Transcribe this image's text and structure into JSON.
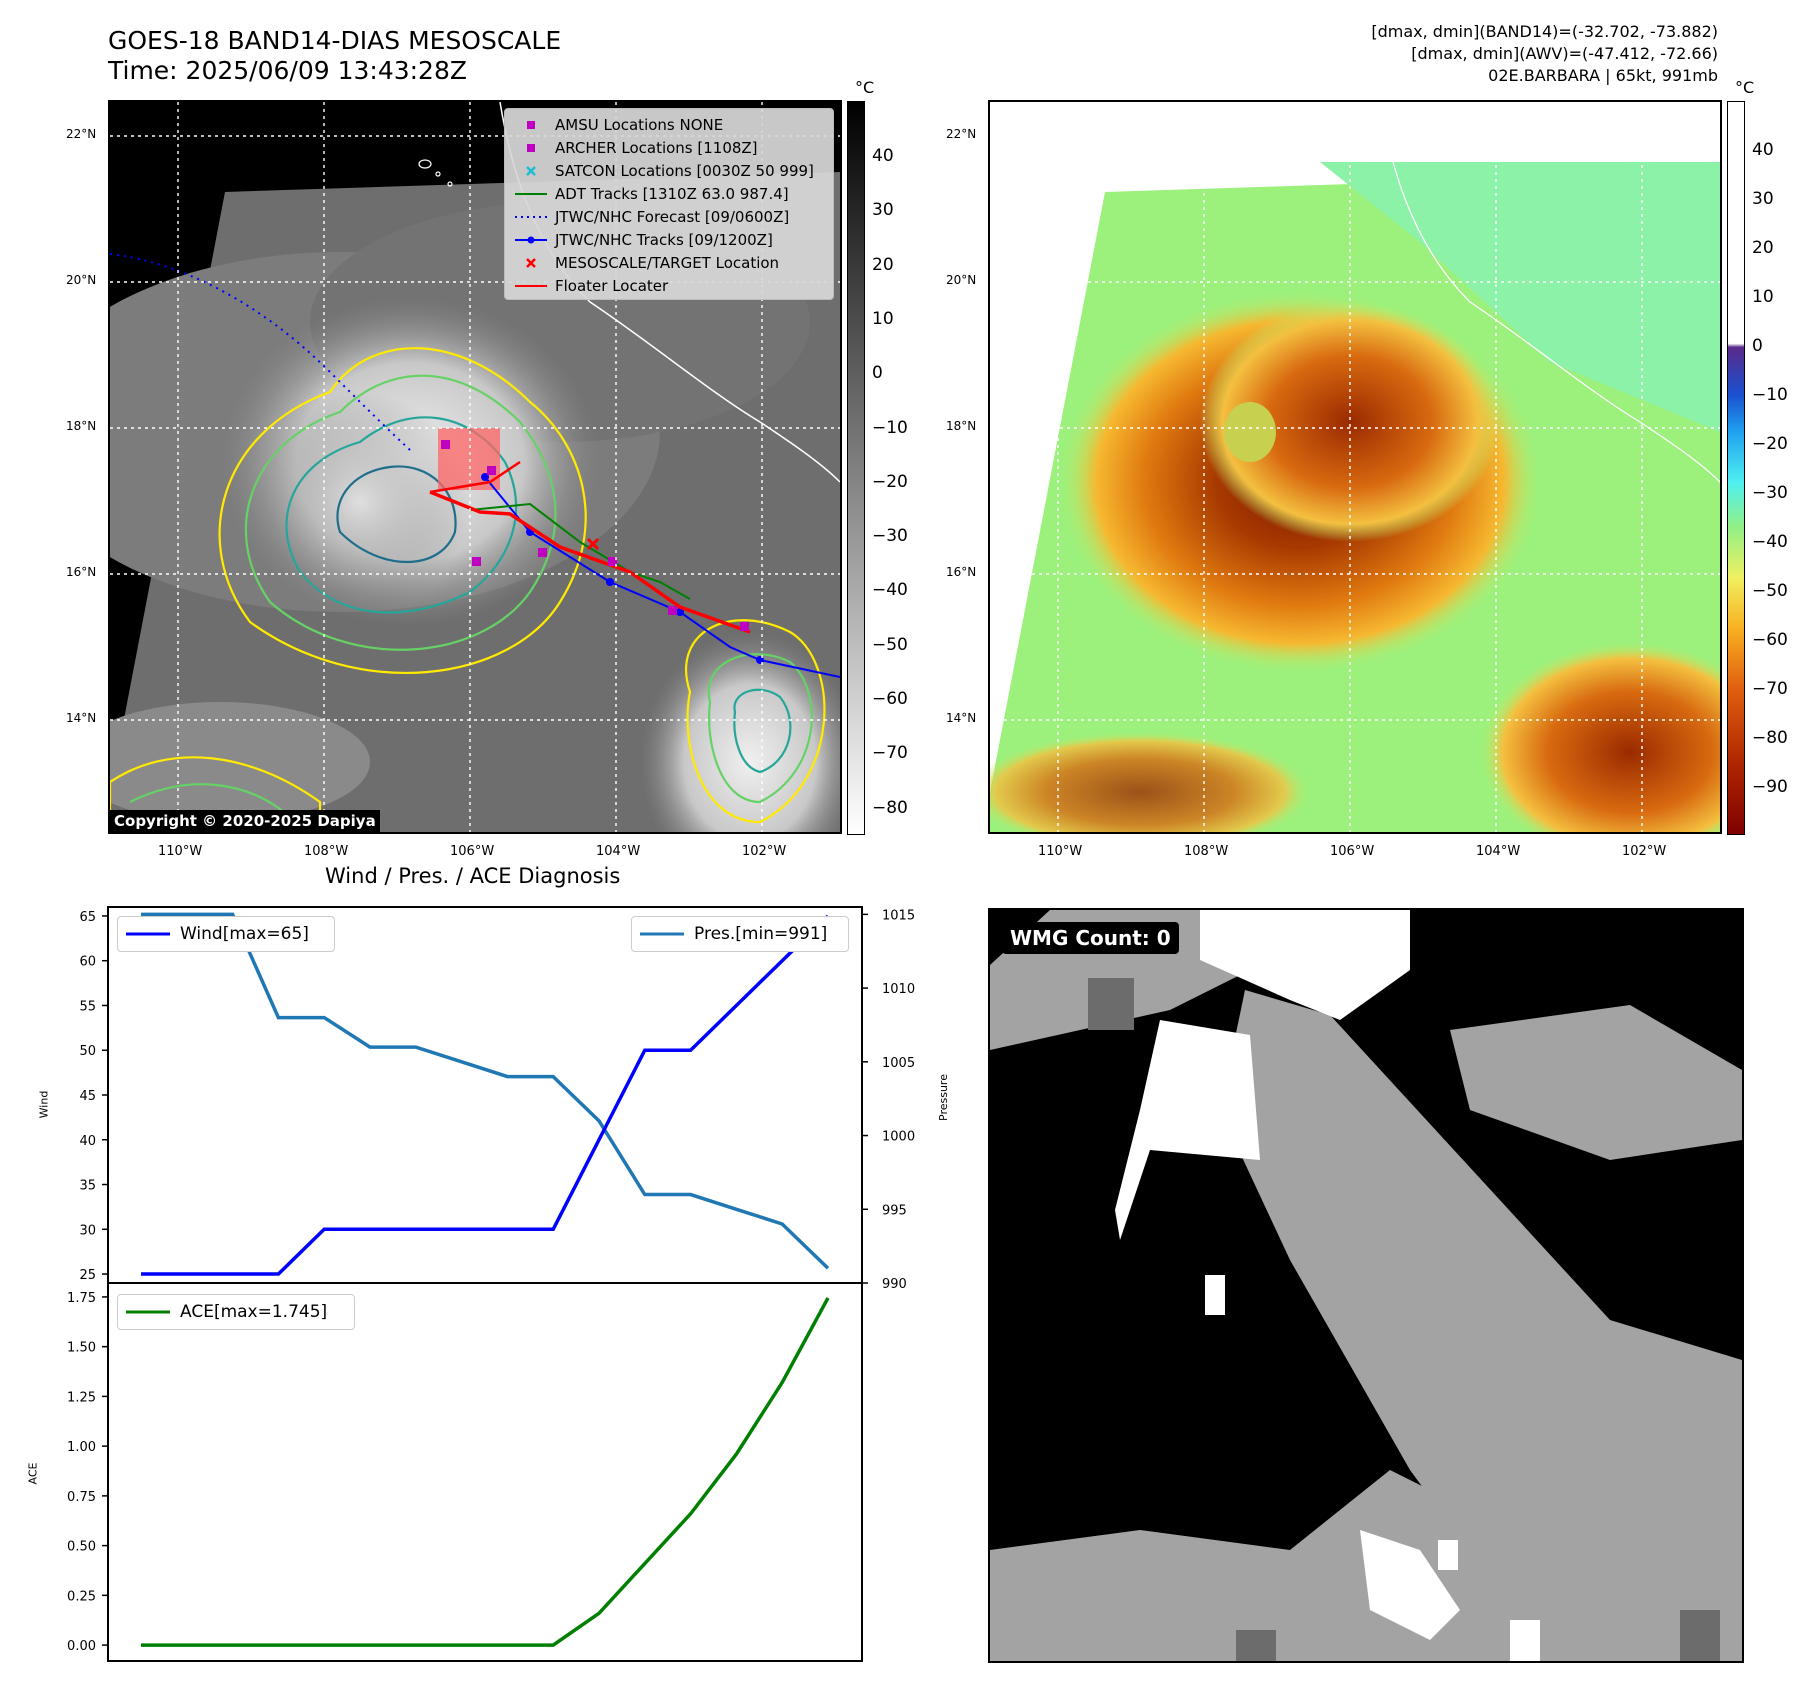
{
  "header": {
    "title": "GOES-18 BAND14-DIAS MESOSCALE",
    "time": "Time: 2025/06/09 13:43:28Z",
    "info_line1": "[dmax, dmin](BAND14)=(-32.702, -73.882)",
    "info_line2": "[dmax, dmin](AWV)=(-47.412, -72.66)",
    "info_line3": "02E.BARBARA | 65kt, 991mb"
  },
  "map": {
    "lat_labels": [
      "22°N",
      "20°N",
      "18°N",
      "16°N",
      "14°N"
    ],
    "lon_labels": [
      "110°W",
      "108°W",
      "106°W",
      "104°W",
      "102°W"
    ],
    "copyright": "Copyright © 2020-2025 Dapiya",
    "legend": [
      {
        "label": "AMSU Locations NONE",
        "color": "#c000c0",
        "marker": "square"
      },
      {
        "label": "ARCHER Locations [1108Z]",
        "color": "#c000c0",
        "marker": "square"
      },
      {
        "label": "SATCON Locations [0030Z 50 999]",
        "color": "#17becf",
        "marker": "x"
      },
      {
        "label": "ADT Tracks [1310Z 63.0 987.4]",
        "color": "#008000",
        "marker": "line"
      },
      {
        "label": "JTWC/NHC Forecast [09/0600Z]",
        "color": "#0000ff",
        "marker": "dotted"
      },
      {
        "label": "JTWC/NHC Tracks [09/1200Z]",
        "color": "#0000ff",
        "marker": "line-dot"
      },
      {
        "label": "MESOSCALE/TARGET Location",
        "color": "#ff0000",
        "marker": "x"
      },
      {
        "label": "Floater Locater",
        "color": "#ff0000",
        "marker": "line"
      }
    ],
    "colorbar_unit": "°C",
    "colorbar_ticks_gray": [
      "40",
      "30",
      "20",
      "10",
      "0",
      "−10",
      "−20",
      "−30",
      "−40",
      "−50",
      "−60",
      "−70",
      "−80"
    ],
    "colorbar_ticks_color": [
      "40",
      "30",
      "20",
      "10",
      "0",
      "−10",
      "−20",
      "−30",
      "−40",
      "−50",
      "−60",
      "−70",
      "−80",
      "−90"
    ],
    "colors": {
      "wind": "#0000ff",
      "pressure": "#1f77b4",
      "ace": "#008000",
      "storm_core": "#8b1a00"
    }
  },
  "chart_data": [
    {
      "type": "line",
      "title": "Wind / Pres. / ACE Diagnosis",
      "x": [
        0,
        1,
        2,
        3,
        4,
        5,
        6,
        7,
        8,
        9,
        10,
        11,
        12,
        13,
        14,
        15
      ],
      "ylabel": "Wind",
      "ylim": [
        24,
        66
      ],
      "yticks": [
        25,
        30,
        35,
        40,
        45,
        50,
        55,
        60,
        65
      ],
      "y2label": "Pressure",
      "y2lim": [
        990,
        1015.5
      ],
      "y2ticks": [
        990,
        995,
        1000,
        1005,
        1010,
        1015
      ],
      "series": [
        {
          "name": "Wind[max=65]",
          "axis": "left",
          "values": [
            25,
            25,
            25,
            25,
            30,
            30,
            30,
            30,
            30,
            30,
            40,
            50,
            50,
            55,
            60,
            65
          ]
        },
        {
          "name": "Pres.[min=991]",
          "axis": "right",
          "values": [
            1015,
            1015,
            1015,
            1008,
            1008,
            1006,
            1006,
            1005,
            1004,
            1004,
            1001,
            996,
            996,
            995,
            994,
            991
          ]
        }
      ]
    },
    {
      "type": "line",
      "x": [
        0,
        1,
        2,
        3,
        4,
        5,
        6,
        7,
        8,
        9,
        10,
        11,
        12,
        13,
        14,
        15
      ],
      "ylabel": "ACE",
      "ylim": [
        -0.08,
        1.82
      ],
      "yticks": [
        "0.00",
        "0.25",
        "0.50",
        "0.75",
        "1.00",
        "1.25",
        "1.50",
        "1.75"
      ],
      "series": [
        {
          "name": "ACE[max=1.745]",
          "values": [
            0,
            0,
            0,
            0,
            0,
            0,
            0,
            0,
            0,
            0,
            0.16,
            0.41,
            0.66,
            0.96,
            1.32,
            1.745
          ]
        }
      ]
    }
  ],
  "wmg": {
    "label": "WMG Count: 0"
  }
}
